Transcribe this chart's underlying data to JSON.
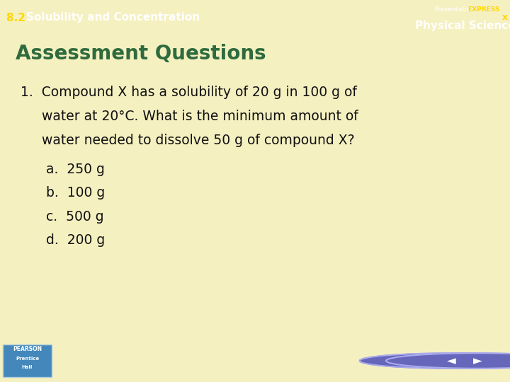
{
  "fig_width": 7.2,
  "fig_height": 5.4,
  "header_bg_color": "#1E5C2E",
  "header_text": "8.2 Solubility and Concentration",
  "header_text_color": "#FFD700",
  "header_font_size": 11,
  "header_number_color": "#FFD700",
  "brand_panel_color": "#2A2AAA",
  "brand_text1": "Presentation",
  "brand_text2": "EXPRESS",
  "brand_text2_color": "#FFD700",
  "brand_text3": "Physical Science",
  "brand_text3_color": "#FFFFFF",
  "x_button_bg": "#3A7A3A",
  "x_button_text": "x",
  "x_button_color": "#FFD700",
  "main_bg_color": "#F5F0C0",
  "section_title": "Assessment Questions",
  "section_title_color": "#2E6B3E",
  "section_title_font_size": 20,
  "question_line1": "1.  Compound X has a solubility of 20 g in 100 g of",
  "question_line2": "     water at 20°C. What is the minimum amount of",
  "question_line3": "     water needed to dissolve 50 g of compound X?",
  "question_font_size": 13.5,
  "question_color": "#111111",
  "answers": [
    "a.  250 g",
    "b.  100 g",
    "c.  500 g",
    "d.  200 g"
  ],
  "answer_font_size": 13.5,
  "answer_color": "#111111",
  "footer_bg_color": "#2222AA",
  "pearson_box_color": "#4488BB",
  "pearson_text_color": "#FFFFFF",
  "pearson_sub_color": "#FFFFFF"
}
